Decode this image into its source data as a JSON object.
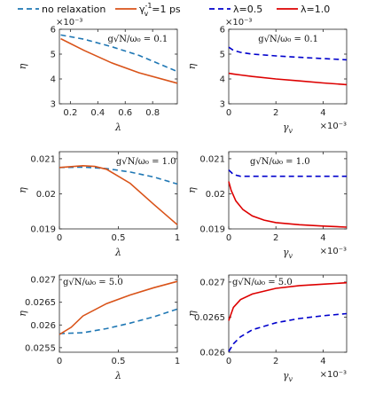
{
  "legend_left": [
    {
      "label_main": "no relaxation",
      "color": "#1f77b4",
      "dash": "6,4",
      "label_sub": ""
    },
    {
      "label_main": "γ",
      "label_sup": "-1",
      "label_sub": "v",
      "label_rest": "=1 ps",
      "color": "#d95319",
      "dash": ""
    }
  ],
  "legend_right": [
    {
      "label": "λ=0.5",
      "color": "#0000cc",
      "dash": "6,4"
    },
    {
      "label": "λ=1.0",
      "color": "#dd0000",
      "dash": ""
    }
  ],
  "chart_data": [
    {
      "type": "line",
      "panel": "top-left",
      "annotation": "g√N/ω₀ = 0.1",
      "xlabel": "λ",
      "ylabel": "η",
      "x_ticks": [
        "0.2",
        "0.4",
        "0.6",
        "0.8"
      ],
      "x_tick_values": [
        0.2,
        0.4,
        0.6,
        0.8
      ],
      "y_ticks": [
        "3",
        "4",
        "5",
        "6"
      ],
      "y_tick_values": [
        3,
        4,
        5,
        6
      ],
      "y_exponent": "×10⁻³",
      "xlim": [
        0.12,
        0.98
      ],
      "ylim": [
        3,
        6
      ],
      "series": [
        {
          "x": [
            0.13,
            0.3,
            0.5,
            0.7,
            0.98
          ],
          "y": [
            5.77,
            5.6,
            5.3,
            4.95,
            4.3
          ],
          "color": "#1f77b4",
          "dash": "6,4"
        },
        {
          "x": [
            0.13,
            0.3,
            0.5,
            0.7,
            0.98
          ],
          "y": [
            5.62,
            5.15,
            4.65,
            4.25,
            3.83
          ],
          "color": "#d95319",
          "dash": ""
        }
      ]
    },
    {
      "type": "line",
      "panel": "top-right",
      "annotation": "g√N/ω₀ = 0.1",
      "xlabel": "γ",
      "xlabel_sub": "v",
      "ylabel": "η",
      "x_ticks": [
        "0",
        "2",
        "4"
      ],
      "x_tick_values": [
        0,
        0.002,
        0.004
      ],
      "y_ticks": [
        "3",
        "4",
        "5",
        "6"
      ],
      "y_tick_values": [
        3,
        4,
        5,
        6
      ],
      "y_exponent": "×10⁻³",
      "x_exponent": "×10⁻³",
      "xlim": [
        0,
        0.005
      ],
      "ylim": [
        3,
        6
      ],
      "series": [
        {
          "x": [
            0,
            0.0002,
            0.0005,
            0.001,
            0.002,
            0.003,
            0.004,
            0.005
          ],
          "y": [
            5.28,
            5.15,
            5.07,
            5.0,
            4.93,
            4.87,
            4.82,
            4.77
          ],
          "color": "#0000cc",
          "dash": "6,4"
        },
        {
          "x": [
            0,
            0.0002,
            0.0005,
            0.001,
            0.002,
            0.003,
            0.004,
            0.005
          ],
          "y": [
            4.23,
            4.2,
            4.16,
            4.1,
            4.0,
            3.92,
            3.84,
            3.77
          ],
          "color": "#dd0000",
          "dash": ""
        }
      ]
    },
    {
      "type": "line",
      "panel": "middle-left",
      "annotation": "g√N/ω₀ = 1.0",
      "xlabel": "λ",
      "ylabel": "η",
      "x_ticks": [
        "0",
        "0.5",
        "1"
      ],
      "x_tick_values": [
        0,
        0.5,
        1
      ],
      "y_ticks": [
        "0.019",
        "0.02",
        "0.021"
      ],
      "y_tick_values": [
        0.019,
        0.02,
        0.021
      ],
      "xlim": [
        0,
        1
      ],
      "ylim": [
        0.019,
        0.0212
      ],
      "series": [
        {
          "x": [
            0,
            0.2,
            0.4,
            0.6,
            0.8,
            1.0
          ],
          "y": [
            0.02075,
            0.02076,
            0.02072,
            0.02062,
            0.02048,
            0.02028
          ],
          "color": "#1f77b4",
          "dash": "6,4"
        },
        {
          "x": [
            0,
            0.2,
            0.3,
            0.4,
            0.6,
            0.8,
            1.0
          ],
          "y": [
            0.02075,
            0.0208,
            0.02078,
            0.0207,
            0.0203,
            0.0197,
            0.01912
          ],
          "color": "#d95319",
          "dash": ""
        }
      ]
    },
    {
      "type": "line",
      "panel": "middle-right",
      "annotation": "g√N/ω₀ = 1.0",
      "xlabel": "γ",
      "xlabel_sub": "v",
      "ylabel": "η",
      "x_ticks": [
        "0",
        "2",
        "4"
      ],
      "x_tick_values": [
        0,
        0.002,
        0.004
      ],
      "y_ticks": [
        "0.019",
        "0.02",
        "0.021"
      ],
      "y_tick_values": [
        0.019,
        0.02,
        0.021
      ],
      "x_exponent": "×10⁻³",
      "xlim": [
        0,
        0.005
      ],
      "ylim": [
        0.019,
        0.0212
      ],
      "series": [
        {
          "x": [
            0,
            0.0002,
            0.0005,
            0.001,
            0.002,
            0.003,
            0.004,
            0.005
          ],
          "y": [
            0.02068,
            0.02055,
            0.0205,
            0.0205,
            0.0205,
            0.0205,
            0.0205,
            0.0205
          ],
          "color": "#0000cc",
          "dash": "6,4"
        },
        {
          "x": [
            0,
            0.0001,
            0.0003,
            0.0006,
            0.001,
            0.0015,
            0.002,
            0.003,
            0.004,
            0.005
          ],
          "y": [
            0.02035,
            0.0201,
            0.0198,
            0.01955,
            0.01937,
            0.01925,
            0.01918,
            0.01912,
            0.01908,
            0.01905
          ],
          "color": "#dd0000",
          "dash": ""
        }
      ]
    },
    {
      "type": "line",
      "panel": "bottom-left",
      "annotation": "g√N/ω₀ = 5.0",
      "xlabel": "λ",
      "ylabel": "η",
      "x_ticks": [
        "0",
        "0.5",
        "1"
      ],
      "x_tick_values": [
        0,
        0.5,
        1
      ],
      "y_ticks": [
        "0.0255",
        "0.026",
        "0.0265",
        "0.027"
      ],
      "y_tick_values": [
        0.0255,
        0.026,
        0.0265,
        0.027
      ],
      "xlim": [
        0,
        1
      ],
      "ylim": [
        0.0254,
        0.0271
      ],
      "series": [
        {
          "x": [
            0,
            0.2,
            0.4,
            0.6,
            0.8,
            1.0
          ],
          "y": [
            0.02581,
            0.02583,
            0.02592,
            0.02604,
            0.02618,
            0.02635
          ],
          "color": "#1f77b4",
          "dash": "6,4"
        },
        {
          "x": [
            0,
            0.1,
            0.2,
            0.4,
            0.6,
            0.8,
            1.0
          ],
          "y": [
            0.02579,
            0.02595,
            0.0262,
            0.02647,
            0.02666,
            0.02682,
            0.02696
          ],
          "color": "#d95319",
          "dash": ""
        }
      ]
    },
    {
      "type": "line",
      "panel": "bottom-right",
      "annotation": "g√N/ω₀ = 5.0",
      "xlabel": "γ",
      "xlabel_sub": "v",
      "ylabel": "η",
      "x_ticks": [
        "0",
        "2",
        "4"
      ],
      "x_tick_values": [
        0,
        0.002,
        0.004
      ],
      "y_ticks": [
        "0.026",
        "0.0265",
        "0.027"
      ],
      "y_tick_values": [
        0.026,
        0.0265,
        0.027
      ],
      "x_exponent": "×10⁻³",
      "xlim": [
        0,
        0.005
      ],
      "ylim": [
        0.026,
        0.0271
      ],
      "series": [
        {
          "x": [
            0,
            0.0002,
            0.0005,
            0.001,
            0.002,
            0.003,
            0.004,
            0.005
          ],
          "y": [
            0.02601,
            0.02612,
            0.02622,
            0.02632,
            0.02642,
            0.02648,
            0.02652,
            0.02655
          ],
          "color": "#0000cc",
          "dash": "6,4"
        },
        {
          "x": [
            0,
            0.0002,
            0.0005,
            0.001,
            0.002,
            0.003,
            0.004,
            0.005
          ],
          "y": [
            0.02645,
            0.02664,
            0.02675,
            0.02683,
            0.02691,
            0.02695,
            0.02697,
            0.02699
          ],
          "color": "#dd0000",
          "dash": ""
        }
      ]
    }
  ]
}
